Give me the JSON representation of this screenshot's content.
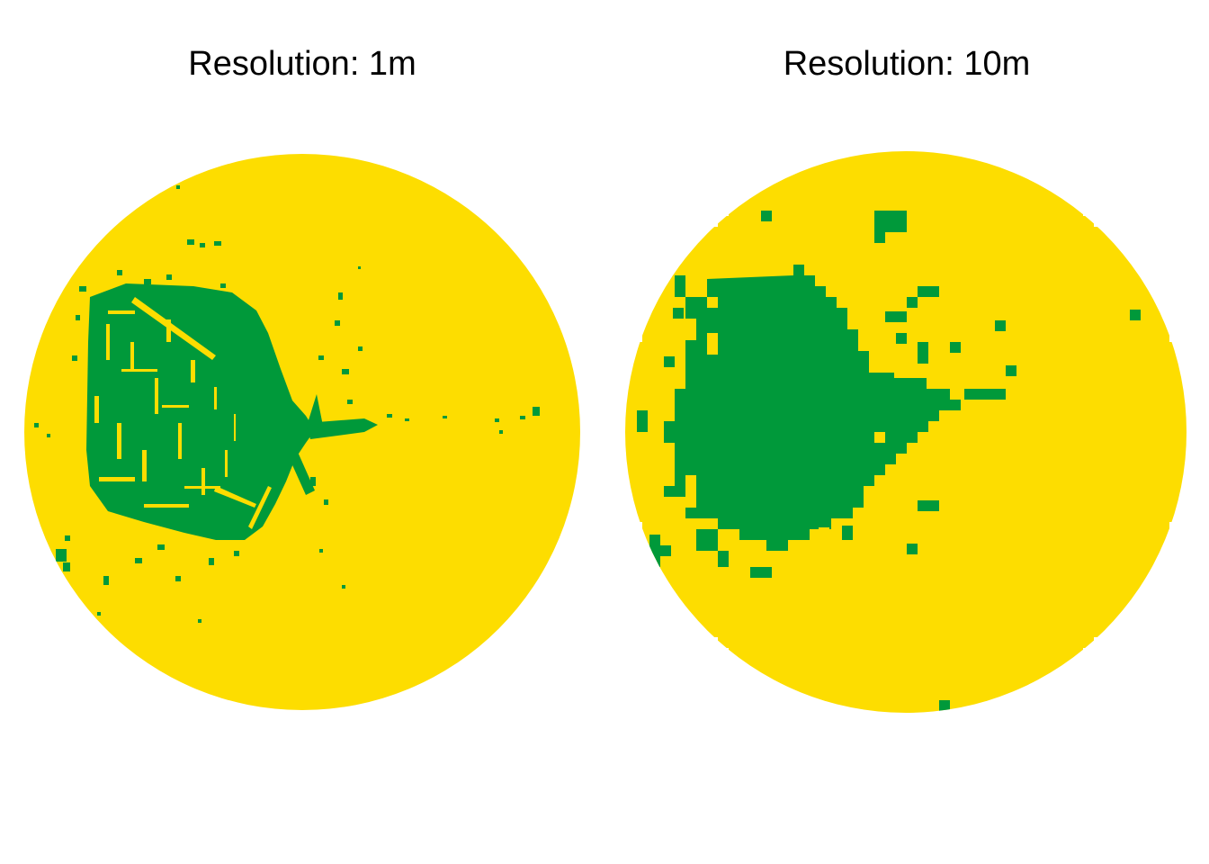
{
  "panels": [
    {
      "title": "Resolution: 1m",
      "resolution_m": 1
    },
    {
      "title": "Resolution: 10m",
      "resolution_m": 10
    }
  ],
  "colors": {
    "background": "#ffffff",
    "raster_class_a": "#fddd00",
    "raster_class_b": "#00993a"
  }
}
